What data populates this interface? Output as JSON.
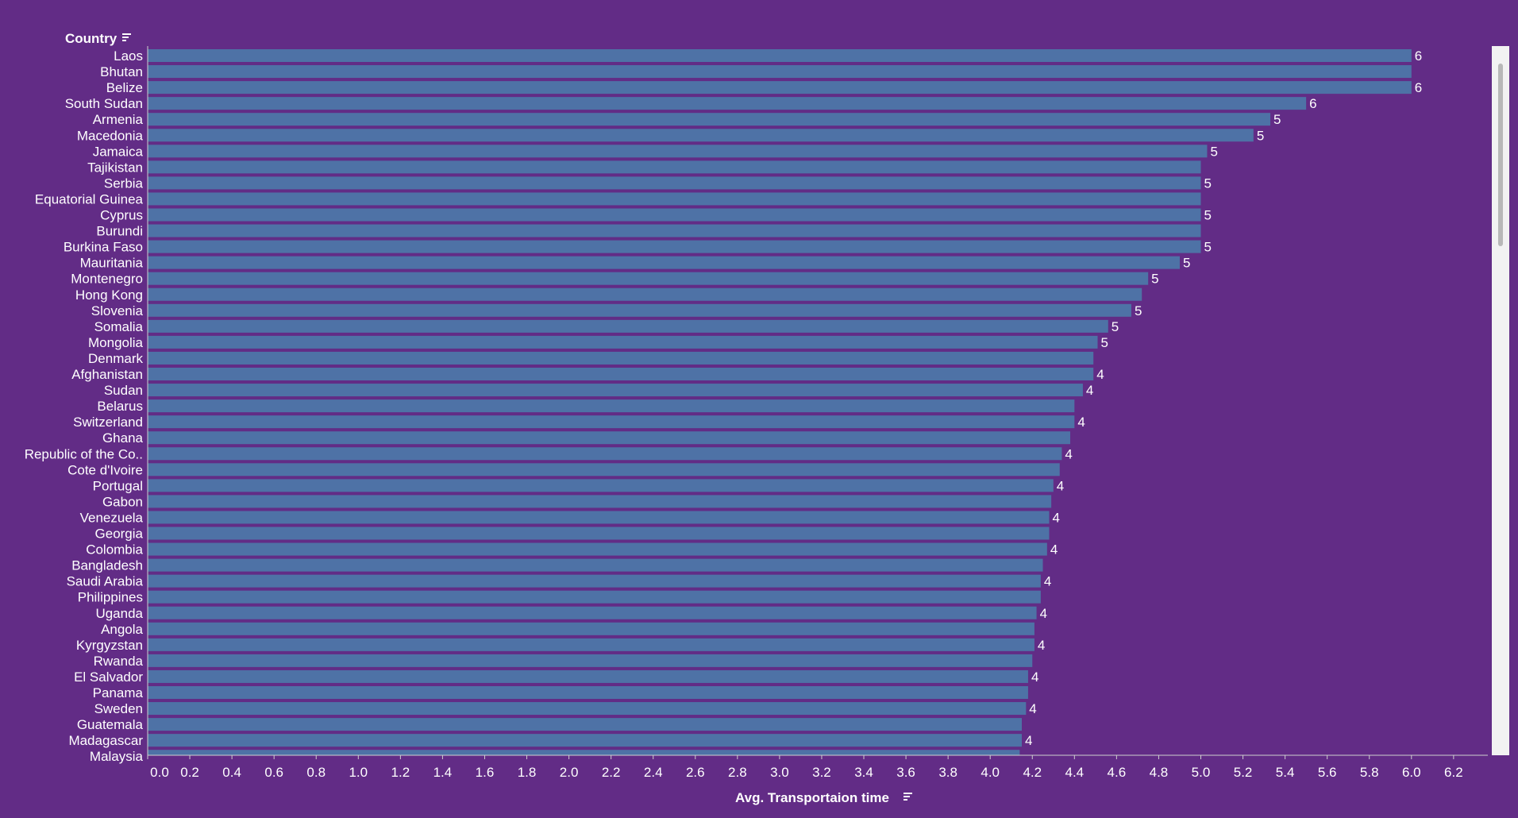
{
  "chart_data": {
    "type": "bar",
    "orientation": "horizontal",
    "ylabel": "Country",
    "xlabel": "Avg. Transportaion time",
    "xlim": [
      0,
      6.35
    ],
    "xticks": [
      "0.0",
      "0.2",
      "0.4",
      "0.6",
      "0.8",
      "1.0",
      "1.2",
      "1.4",
      "1.6",
      "1.8",
      "2.0",
      "2.2",
      "2.4",
      "2.6",
      "2.8",
      "3.0",
      "3.2",
      "3.4",
      "3.6",
      "3.8",
      "4.0",
      "4.2",
      "4.4",
      "4.6",
      "4.8",
      "5.0",
      "5.2",
      "5.4",
      "5.6",
      "5.8",
      "6.0",
      "6.2"
    ],
    "grid": false,
    "bar_color": "#4e72a6",
    "categories": [
      "Laos",
      "Bhutan",
      "Belize",
      "South Sudan",
      "Armenia",
      "Macedonia",
      "Jamaica",
      "Tajikistan",
      "Serbia",
      "Equatorial Guinea",
      "Cyprus",
      "Burundi",
      "Burkina Faso",
      "Mauritania",
      "Montenegro",
      "Hong Kong",
      "Slovenia",
      "Somalia",
      "Mongolia",
      "Denmark",
      "Afghanistan",
      "Sudan",
      "Belarus",
      "Switzerland",
      "Ghana",
      "Republic of the Co..",
      "Cote d'Ivoire",
      "Portugal",
      "Gabon",
      "Venezuela",
      "Georgia",
      "Colombia",
      "Bangladesh",
      "Saudi Arabia",
      "Philippines",
      "Uganda",
      "Angola",
      "Kyrgyzstan",
      "Rwanda",
      "El Salvador",
      "Panama",
      "Sweden",
      "Guatemala",
      "Madagascar",
      "Malaysia"
    ],
    "values": [
      6.0,
      6.0,
      6.0,
      5.5,
      5.33,
      5.25,
      5.03,
      5.0,
      5.0,
      5.0,
      5.0,
      5.0,
      5.0,
      4.9,
      4.75,
      4.72,
      4.67,
      4.56,
      4.51,
      4.49,
      4.49,
      4.44,
      4.4,
      4.4,
      4.38,
      4.34,
      4.33,
      4.3,
      4.29,
      4.28,
      4.28,
      4.27,
      4.25,
      4.24,
      4.24,
      4.22,
      4.21,
      4.21,
      4.2,
      4.18,
      4.18,
      4.17,
      4.15,
      4.15,
      4.14
    ],
    "data_labels": [
      "6",
      "",
      "6",
      "6",
      "5",
      "5",
      "5",
      "",
      "5",
      "",
      "5",
      "",
      "5",
      "5",
      "5",
      "",
      "5",
      "5",
      "5",
      "",
      "4",
      "4",
      "",
      "4",
      "",
      "4",
      "",
      "4",
      "",
      "4",
      "",
      "4",
      "",
      "4",
      "",
      "4",
      "",
      "4",
      "",
      "4",
      "",
      "4",
      "",
      "4",
      ""
    ]
  }
}
